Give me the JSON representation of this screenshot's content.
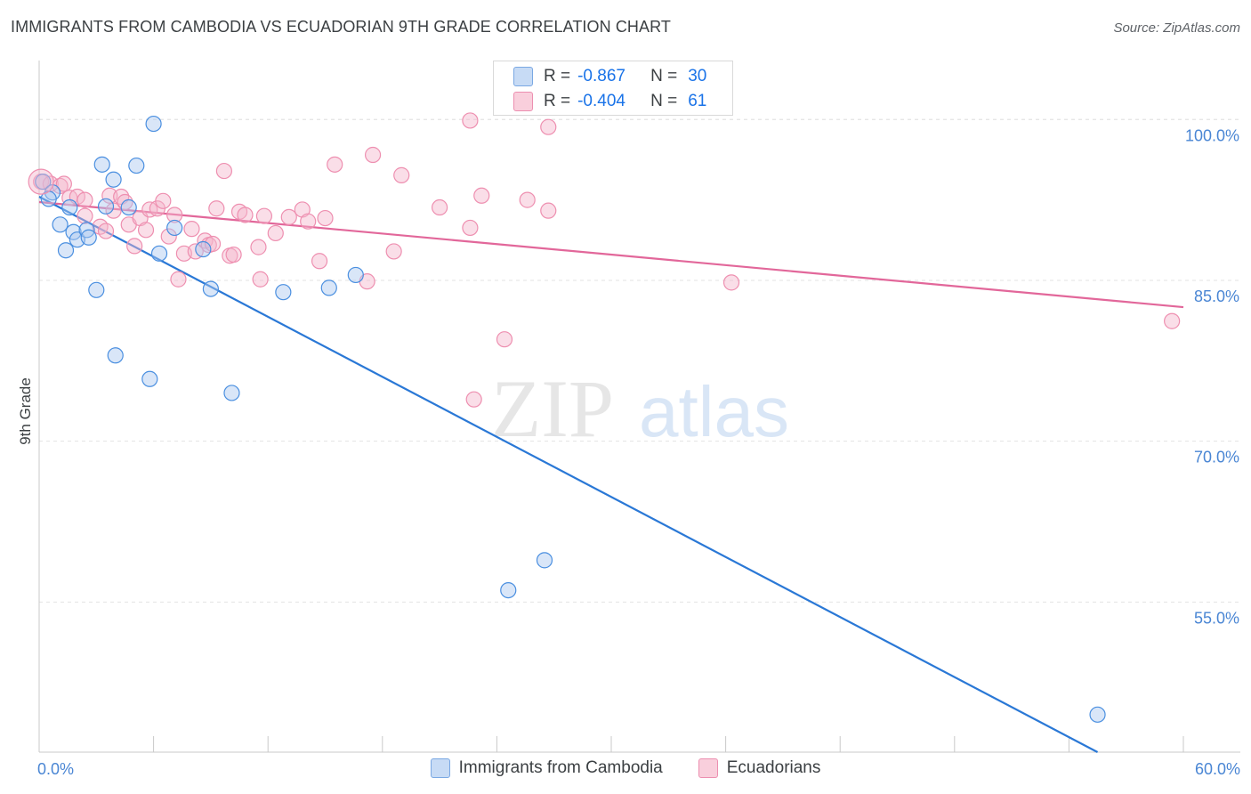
{
  "header": {
    "title": "IMMIGRANTS FROM CAMBODIA VS ECUADORIAN 9TH GRADE CORRELATION CHART",
    "source": "Source: ZipAtlas.com"
  },
  "watermark": {
    "zip": "ZIP",
    "atlas": "atlas"
  },
  "stats": {
    "r_label": "R =",
    "n_label": "N =",
    "rows": [
      {
        "r": "-0.867",
        "n": "30",
        "color": "#aac8ef"
      },
      {
        "r": "-0.404",
        "n": "61",
        "color": "#f5b6cb"
      }
    ]
  },
  "legend": {
    "items": [
      {
        "label": "Immigrants from Cambodia",
        "color": "#aac8ef"
      },
      {
        "label": "Ecuadorians",
        "color": "#f5b6cb"
      }
    ]
  },
  "chart_data": {
    "type": "scatter",
    "title": "IMMIGRANTS FROM CAMBODIA VS ECUADORIAN 9TH GRADE CORRELATION CHART",
    "xlabel": "",
    "ylabel": "9th Grade",
    "xlim": [
      0,
      60
    ],
    "ylim": [
      41,
      105.5
    ],
    "x_tick_labels": [
      "0.0%",
      "60.0%"
    ],
    "y_ticks": [
      55,
      70,
      85,
      100
    ],
    "y_tick_labels": [
      "55.0%",
      "70.0%",
      "85.0%",
      "100.0%"
    ],
    "grid": true,
    "series": [
      {
        "name": "Immigrants from Cambodia",
        "color": "#4a8fe0",
        "fill": "#aac8ef",
        "trend_color": "#2a78d6",
        "trend": {
          "x": [
            0,
            55.5
          ],
          "y": [
            92.8,
            41
          ]
        },
        "points": [
          [
            0.2,
            94.2
          ],
          [
            0.7,
            93.2
          ],
          [
            0.5,
            92.6
          ],
          [
            1.6,
            91.8
          ],
          [
            1.1,
            90.2
          ],
          [
            1.8,
            89.5
          ],
          [
            2.0,
            88.8
          ],
          [
            2.5,
            89.7
          ],
          [
            2.6,
            89.0
          ],
          [
            1.4,
            87.8
          ],
          [
            3.3,
            95.8
          ],
          [
            3.9,
            94.4
          ],
          [
            3.5,
            91.9
          ],
          [
            4.7,
            91.8
          ],
          [
            5.1,
            95.7
          ],
          [
            6.0,
            99.6
          ],
          [
            6.3,
            87.5
          ],
          [
            7.1,
            89.9
          ],
          [
            8.6,
            87.9
          ],
          [
            9.0,
            84.2
          ],
          [
            3.0,
            84.1
          ],
          [
            4.0,
            78.0
          ],
          [
            5.8,
            75.8
          ],
          [
            10.1,
            74.5
          ],
          [
            12.8,
            83.9
          ],
          [
            15.2,
            84.3
          ],
          [
            16.6,
            85.5
          ],
          [
            24.6,
            56.1
          ],
          [
            26.5,
            58.9
          ],
          [
            55.5,
            44.5
          ]
        ]
      },
      {
        "name": "Ecuadorians",
        "color": "#ee8fb0",
        "fill": "#f5b6cb",
        "trend_color": "#e2679a",
        "trend": {
          "x": [
            0,
            60
          ],
          "y": [
            92.3,
            82.5
          ]
        },
        "points": [
          [
            0.1,
            94.2
          ],
          [
            0.6,
            94.0
          ],
          [
            1.1,
            93.8
          ],
          [
            1.3,
            94.0
          ],
          [
            1.6,
            92.7
          ],
          [
            2.0,
            92.8
          ],
          [
            2.4,
            92.5
          ],
          [
            2.4,
            91.0
          ],
          [
            3.2,
            90.0
          ],
          [
            3.5,
            89.6
          ],
          [
            3.7,
            92.9
          ],
          [
            3.9,
            91.5
          ],
          [
            4.3,
            92.8
          ],
          [
            4.5,
            92.3
          ],
          [
            4.7,
            90.2
          ],
          [
            5.0,
            88.2
          ],
          [
            5.3,
            90.8
          ],
          [
            5.6,
            89.7
          ],
          [
            5.8,
            91.6
          ],
          [
            6.2,
            91.7
          ],
          [
            6.5,
            92.4
          ],
          [
            6.8,
            89.1
          ],
          [
            7.1,
            91.1
          ],
          [
            7.3,
            85.1
          ],
          [
            7.6,
            87.5
          ],
          [
            8.0,
            89.8
          ],
          [
            8.2,
            87.7
          ],
          [
            8.7,
            88.7
          ],
          [
            8.9,
            88.3
          ],
          [
            9.1,
            88.4
          ],
          [
            9.3,
            91.7
          ],
          [
            9.7,
            95.2
          ],
          [
            10.0,
            87.3
          ],
          [
            10.2,
            87.4
          ],
          [
            10.5,
            91.4
          ],
          [
            10.8,
            91.1
          ],
          [
            11.5,
            88.1
          ],
          [
            11.6,
            85.1
          ],
          [
            11.8,
            91.0
          ],
          [
            12.4,
            89.4
          ],
          [
            13.1,
            90.9
          ],
          [
            13.8,
            91.6
          ],
          [
            14.1,
            90.5
          ],
          [
            14.7,
            86.8
          ],
          [
            15.0,
            90.8
          ],
          [
            15.5,
            95.8
          ],
          [
            17.2,
            84.9
          ],
          [
            17.5,
            96.7
          ],
          [
            18.6,
            87.7
          ],
          [
            19.0,
            94.8
          ],
          [
            21.0,
            91.8
          ],
          [
            22.6,
            89.9
          ],
          [
            22.6,
            99.9
          ],
          [
            22.8,
            73.9
          ],
          [
            23.2,
            92.9
          ],
          [
            24.4,
            79.5
          ],
          [
            25.6,
            92.5
          ],
          [
            26.7,
            91.5
          ],
          [
            26.7,
            99.3
          ],
          [
            36.3,
            84.8
          ],
          [
            59.4,
            81.2
          ]
        ]
      }
    ]
  }
}
